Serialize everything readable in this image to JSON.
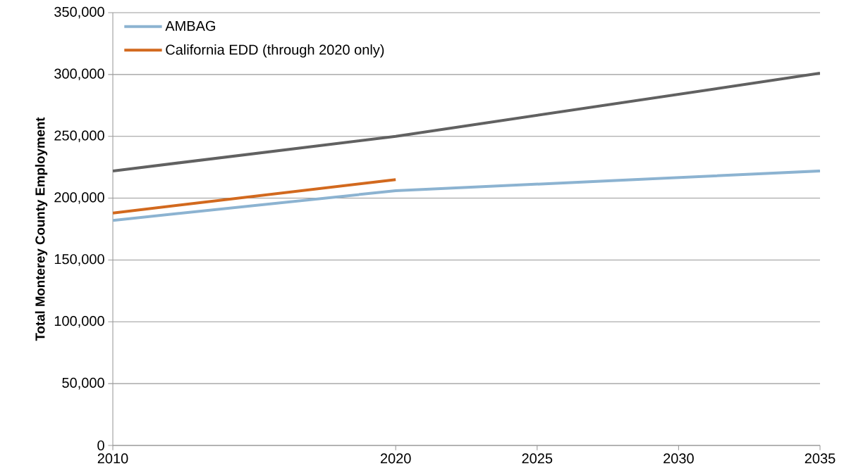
{
  "chart_data": {
    "type": "line",
    "ylabel": "Total Monterey County Employment",
    "series": [
      {
        "name": "AMBAG",
        "color": "#8cb3d1",
        "x": [
          2010,
          2020,
          2035
        ],
        "values": [
          182000,
          206000,
          222000
        ]
      },
      {
        "name": "California EDD (through 2020 only)",
        "color": "#d2691e",
        "x": [
          2010,
          2020
        ],
        "values": [
          188000,
          215000
        ]
      },
      {
        "color": "#616161",
        "x": [
          2010,
          2020,
          2035
        ],
        "values": [
          222000,
          250000,
          301000
        ]
      }
    ],
    "xlim": [
      2010,
      2035
    ],
    "xticks": [
      2010,
      2020,
      2025,
      2030,
      2035
    ],
    "ylim": [
      0,
      350000
    ],
    "yticks": [
      0,
      {
        "value": 50000,
        "label": "50,000"
      },
      {
        "value": 100000,
        "label": "100,000"
      },
      {
        "value": 150000,
        "label": "150,000"
      },
      {
        "value": 200000,
        "label": "200,000"
      },
      {
        "value": 250000,
        "label": "250,000"
      },
      {
        "value": 300000,
        "label": "300,000"
      },
      {
        "value": 350000,
        "label": "350,000"
      }
    ],
    "grid": "y",
    "legend": "top left",
    "line_style": "solid",
    "marker": "none"
  }
}
